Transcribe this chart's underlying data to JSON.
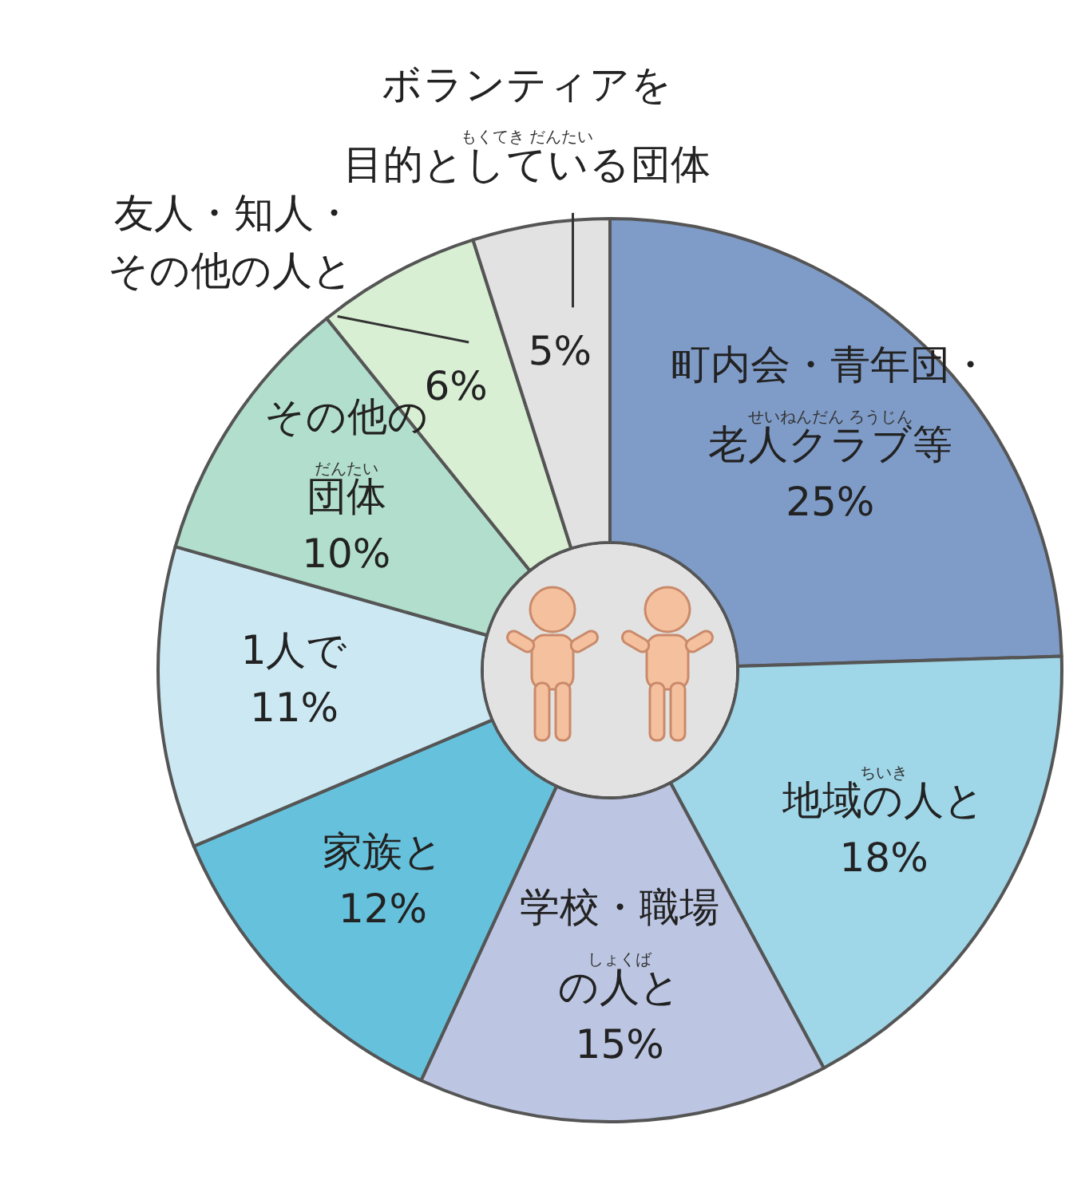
{
  "chart_data": {
    "type": "donut",
    "categories": [
      "町内会・青年団・老人クラブ等",
      "地域の人と",
      "学校・職場の人と",
      "家族と",
      "1人で",
      "その他の団体",
      "友人・知人・その他の人と",
      "ボランティアを目的としている団体"
    ],
    "values": [
      25,
      18,
      15,
      12,
      11,
      10,
      6,
      5
    ],
    "value_labels": [
      "25%",
      "18%",
      "15%",
      "12%",
      "11%",
      "10%",
      "6%",
      "5%"
    ],
    "colors": [
      "#7f9cc8",
      "#9fd6e8",
      "#bcc6e2",
      "#66c2dc",
      "#cce9f3",
      "#b2dfcd",
      "#d9efd3",
      "#e2e2e2"
    ],
    "annotations": [
      {
        "text": "せいねんだん ろうじん",
        "x": "町内会・青年団・老人クラブ等"
      },
      {
        "text": "ちいき",
        "x": "地域の人と"
      },
      {
        "text": "しょくば",
        "x": "学校・職場の人と"
      },
      {
        "text": "だんたい",
        "x": "その他の団体"
      },
      {
        "text": "もくてき だんたい",
        "x": "ボランティアを目的としている団体"
      }
    ]
  }
}
